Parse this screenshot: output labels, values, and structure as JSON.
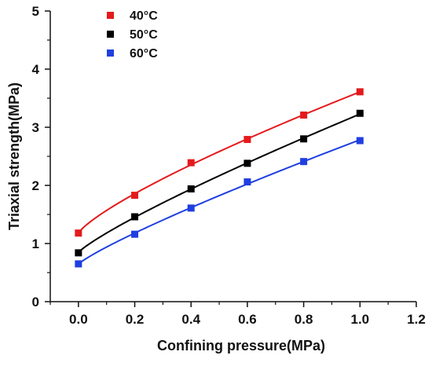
{
  "chart_data": {
    "type": "scatter",
    "title": "",
    "xlabel": "Confining pressure(MPa)",
    "ylabel": "Triaxial strength(MPa)",
    "xlim": [
      -0.1,
      1.2
    ],
    "ylim": [
      0,
      5
    ],
    "x_ticks": [
      "0.0",
      "0.2",
      "0.4",
      "0.6",
      "0.8",
      "1.0",
      "1.2"
    ],
    "y_ticks": [
      "0",
      "1",
      "2",
      "3",
      "4",
      "5"
    ],
    "grid": false,
    "legend_position": "top-left",
    "series": [
      {
        "name": "40°C",
        "color": "#e41a1c",
        "marker": "square",
        "x": [
          0.0,
          0.2,
          0.4,
          0.6,
          0.8,
          1.0
        ],
        "y": [
          1.18,
          1.83,
          2.39,
          2.79,
          3.21,
          3.61
        ],
        "fit_curve": true
      },
      {
        "name": "50°C",
        "color": "#000000",
        "marker": "square",
        "x": [
          0.0,
          0.2,
          0.4,
          0.6,
          0.8,
          1.0
        ],
        "y": [
          0.84,
          1.46,
          1.94,
          2.38,
          2.8,
          3.24
        ],
        "fit_curve": true
      },
      {
        "name": "60°C",
        "color": "#1f3fe0",
        "marker": "square",
        "x": [
          0.0,
          0.2,
          0.4,
          0.6,
          0.8,
          1.0
        ],
        "y": [
          0.65,
          1.16,
          1.61,
          2.06,
          2.41,
          2.77
        ],
        "fit_curve": true
      }
    ]
  }
}
